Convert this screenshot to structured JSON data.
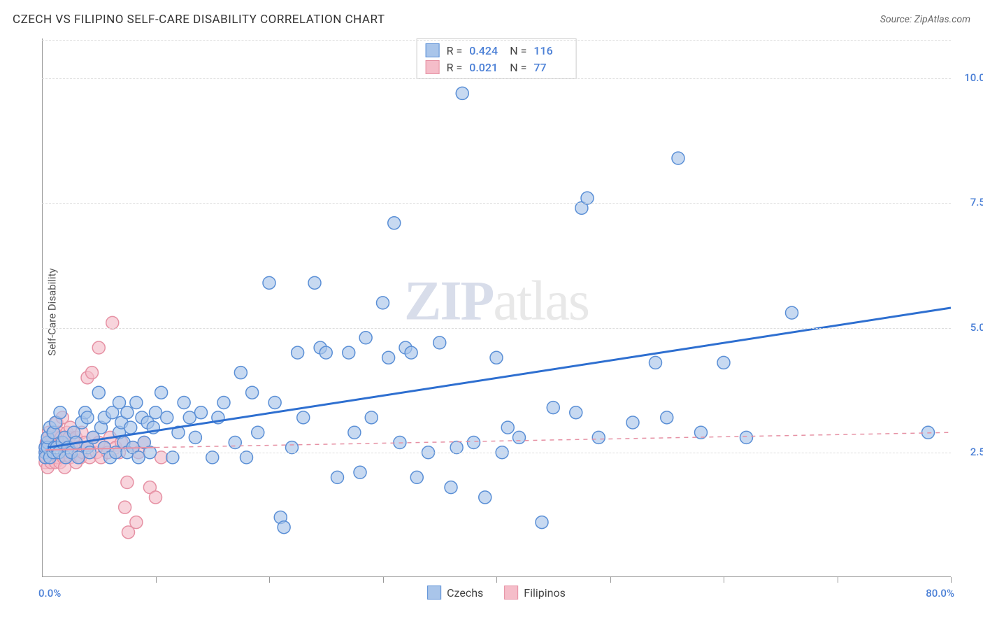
{
  "title": "CZECH VS FILIPINO SELF-CARE DISABILITY CORRELATION CHART",
  "source_label": "Source: ZipAtlas.com",
  "ylabel": "Self-Care Disability",
  "watermark": {
    "part1": "ZIP",
    "part2": "atlas"
  },
  "chart": {
    "type": "scatter",
    "xlim": [
      0,
      80
    ],
    "ylim": [
      0,
      10.8
    ],
    "xticks": [
      0,
      10,
      20,
      30,
      40,
      50,
      60,
      70,
      80
    ],
    "ytick_lines": [
      2.5,
      5.0,
      7.5,
      10.0
    ],
    "xtick_labels": {
      "min": "0.0%",
      "max": "80.0%"
    },
    "ytick_labels": [
      "2.5%",
      "5.0%",
      "7.5%",
      "10.0%"
    ],
    "background_color": "#ffffff",
    "grid_color": "#dddddd",
    "axis_label_color": "#4a7fd6",
    "series": [
      {
        "name": "Czechs",
        "marker_fill": "#a9c5ea",
        "marker_stroke": "#5a8fd6",
        "marker_opacity": 0.65,
        "marker_radius": 9,
        "line_color": "#2e6fd0",
        "line_width": 3,
        "trend": {
          "x1": 0.5,
          "y1": 2.6,
          "x2": 80,
          "y2": 5.4
        },
        "R": "0.424",
        "N": "116",
        "points": [
          [
            0.3,
            2.5
          ],
          [
            0.3,
            2.6
          ],
          [
            0.3,
            2.4
          ],
          [
            0.5,
            2.7
          ],
          [
            0.5,
            2.6
          ],
          [
            0.5,
            2.8
          ],
          [
            0.7,
            3.0
          ],
          [
            0.7,
            2.4
          ],
          [
            1.0,
            2.5
          ],
          [
            1.0,
            2.9
          ],
          [
            1.1,
            2.6
          ],
          [
            1.2,
            3.1
          ],
          [
            1.3,
            2.6
          ],
          [
            1.5,
            2.5
          ],
          [
            1.6,
            3.3
          ],
          [
            1.8,
            2.7
          ],
          [
            2.0,
            2.8
          ],
          [
            2.1,
            2.4
          ],
          [
            2.3,
            2.6
          ],
          [
            2.6,
            2.5
          ],
          [
            2.8,
            2.9
          ],
          [
            3.0,
            2.7
          ],
          [
            3.2,
            2.4
          ],
          [
            3.5,
            3.1
          ],
          [
            3.8,
            3.3
          ],
          [
            4.0,
            2.6
          ],
          [
            4.0,
            3.2
          ],
          [
            4.2,
            2.5
          ],
          [
            4.5,
            2.8
          ],
          [
            5.0,
            3.7
          ],
          [
            5.2,
            3.0
          ],
          [
            5.5,
            2.6
          ],
          [
            5.5,
            3.2
          ],
          [
            6.0,
            2.4
          ],
          [
            6.2,
            3.3
          ],
          [
            6.5,
            2.5
          ],
          [
            6.8,
            2.9
          ],
          [
            6.8,
            3.5
          ],
          [
            7.0,
            3.1
          ],
          [
            7.2,
            2.7
          ],
          [
            7.5,
            2.5
          ],
          [
            7.5,
            3.3
          ],
          [
            7.8,
            3.0
          ],
          [
            8.0,
            2.6
          ],
          [
            8.3,
            3.5
          ],
          [
            8.5,
            2.4
          ],
          [
            8.8,
            3.2
          ],
          [
            9.0,
            2.7
          ],
          [
            9.3,
            3.1
          ],
          [
            9.5,
            2.5
          ],
          [
            9.8,
            3.0
          ],
          [
            10.0,
            3.3
          ],
          [
            10.5,
            3.7
          ],
          [
            11.0,
            3.2
          ],
          [
            11.5,
            2.4
          ],
          [
            12.0,
            2.9
          ],
          [
            12.5,
            3.5
          ],
          [
            13.0,
            3.2
          ],
          [
            13.5,
            2.8
          ],
          [
            14.0,
            3.3
          ],
          [
            15.0,
            2.4
          ],
          [
            15.5,
            3.2
          ],
          [
            16.0,
            3.5
          ],
          [
            17.0,
            2.7
          ],
          [
            17.5,
            4.1
          ],
          [
            18.0,
            2.4
          ],
          [
            18.5,
            3.7
          ],
          [
            19.0,
            2.9
          ],
          [
            20.0,
            5.9
          ],
          [
            20.5,
            3.5
          ],
          [
            21.0,
            1.2
          ],
          [
            21.3,
            1.0
          ],
          [
            22.0,
            2.6
          ],
          [
            22.5,
            4.5
          ],
          [
            23.0,
            3.2
          ],
          [
            24.0,
            5.9
          ],
          [
            24.5,
            4.6
          ],
          [
            25.0,
            4.5
          ],
          [
            26.0,
            2.0
          ],
          [
            27.0,
            4.5
          ],
          [
            27.5,
            2.9
          ],
          [
            28.0,
            2.1
          ],
          [
            28.5,
            4.8
          ],
          [
            29.0,
            3.2
          ],
          [
            30.0,
            5.5
          ],
          [
            30.5,
            4.4
          ],
          [
            31.0,
            7.1
          ],
          [
            31.5,
            2.7
          ],
          [
            32.0,
            4.6
          ],
          [
            32.5,
            4.5
          ],
          [
            33.0,
            2.0
          ],
          [
            34.0,
            2.5
          ],
          [
            35.0,
            4.7
          ],
          [
            36.0,
            1.8
          ],
          [
            36.5,
            2.6
          ],
          [
            37.0,
            9.7
          ],
          [
            38.0,
            2.7
          ],
          [
            39.0,
            1.6
          ],
          [
            40.0,
            4.4
          ],
          [
            40.5,
            2.5
          ],
          [
            41.0,
            3.0
          ],
          [
            42.0,
            2.8
          ],
          [
            44.0,
            1.1
          ],
          [
            45.0,
            3.4
          ],
          [
            47.0,
            3.3
          ],
          [
            47.5,
            7.4
          ],
          [
            48.0,
            7.6
          ],
          [
            49.0,
            2.8
          ],
          [
            52.0,
            3.1
          ],
          [
            54.0,
            4.3
          ],
          [
            55.0,
            3.2
          ],
          [
            56.0,
            8.4
          ],
          [
            58.0,
            2.9
          ],
          [
            60.0,
            4.3
          ],
          [
            62.0,
            2.8
          ],
          [
            66.0,
            5.3
          ],
          [
            78.0,
            2.9
          ]
        ]
      },
      {
        "name": "Filipinos",
        "marker_fill": "#f5bdc9",
        "marker_stroke": "#e691a4",
        "marker_opacity": 0.65,
        "marker_radius": 9,
        "line_color": "#e691a4",
        "line_width": 2,
        "dashed_extension": true,
        "trend_solid": {
          "x1": 0.3,
          "y1": 2.55,
          "x2": 10,
          "y2": 2.6
        },
        "trend_dash": {
          "x1": 10,
          "y1": 2.6,
          "x2": 80,
          "y2": 2.9
        },
        "R": "0.021",
        "N": "77",
        "points": [
          [
            0.3,
            2.5
          ],
          [
            0.3,
            2.3
          ],
          [
            0.3,
            2.6
          ],
          [
            0.4,
            2.4
          ],
          [
            0.4,
            2.7
          ],
          [
            0.5,
            2.5
          ],
          [
            0.5,
            2.8
          ],
          [
            0.5,
            2.2
          ],
          [
            0.6,
            2.6
          ],
          [
            0.6,
            2.9
          ],
          [
            0.7,
            2.4
          ],
          [
            0.7,
            2.7
          ],
          [
            0.8,
            2.5
          ],
          [
            0.8,
            2.3
          ],
          [
            0.9,
            2.6
          ],
          [
            0.9,
            2.8
          ],
          [
            1.0,
            2.4
          ],
          [
            1.0,
            2.7
          ],
          [
            1.1,
            2.5
          ],
          [
            1.1,
            2.9
          ],
          [
            1.2,
            2.3
          ],
          [
            1.2,
            2.6
          ],
          [
            1.3,
            2.8
          ],
          [
            1.3,
            3.1
          ],
          [
            1.4,
            2.4
          ],
          [
            1.4,
            2.7
          ],
          [
            1.5,
            2.5
          ],
          [
            1.5,
            2.9
          ],
          [
            1.6,
            2.6
          ],
          [
            1.6,
            2.3
          ],
          [
            1.7,
            2.8
          ],
          [
            1.8,
            2.5
          ],
          [
            1.8,
            3.2
          ],
          [
            1.9,
            2.4
          ],
          [
            2.0,
            2.7
          ],
          [
            2.0,
            2.2
          ],
          [
            2.1,
            2.6
          ],
          [
            2.2,
            2.9
          ],
          [
            2.3,
            2.5
          ],
          [
            2.4,
            2.8
          ],
          [
            2.5,
            2.4
          ],
          [
            2.5,
            3.0
          ],
          [
            2.6,
            2.6
          ],
          [
            2.8,
            2.5
          ],
          [
            3.0,
            2.3
          ],
          [
            3.0,
            2.8
          ],
          [
            3.2,
            2.6
          ],
          [
            3.4,
            2.4
          ],
          [
            3.5,
            2.9
          ],
          [
            3.6,
            2.5
          ],
          [
            3.8,
            2.7
          ],
          [
            4.0,
            2.6
          ],
          [
            4.0,
            4.0
          ],
          [
            4.2,
            2.4
          ],
          [
            4.4,
            4.1
          ],
          [
            4.5,
            2.8
          ],
          [
            4.8,
            2.5
          ],
          [
            5.0,
            2.7
          ],
          [
            5.0,
            4.6
          ],
          [
            5.2,
            2.4
          ],
          [
            5.5,
            2.6
          ],
          [
            5.8,
            2.5
          ],
          [
            6.0,
            2.8
          ],
          [
            6.2,
            5.1
          ],
          [
            6.5,
            2.6
          ],
          [
            6.8,
            2.5
          ],
          [
            7.0,
            2.7
          ],
          [
            7.3,
            1.4
          ],
          [
            7.5,
            1.9
          ],
          [
            7.6,
            0.9
          ],
          [
            8.0,
            2.6
          ],
          [
            8.3,
            1.1
          ],
          [
            8.5,
            2.5
          ],
          [
            9.0,
            2.7
          ],
          [
            9.5,
            1.8
          ],
          [
            10.0,
            1.6
          ],
          [
            10.5,
            2.4
          ]
        ]
      }
    ]
  },
  "legend_top_labels": {
    "R_prefix": "R =",
    "N_prefix": "N ="
  },
  "legend_bottom": [
    {
      "label": "Czechs",
      "fill": "#a9c5ea",
      "stroke": "#5a8fd6"
    },
    {
      "label": "Filipinos",
      "fill": "#f5bdc9",
      "stroke": "#e691a4"
    }
  ]
}
